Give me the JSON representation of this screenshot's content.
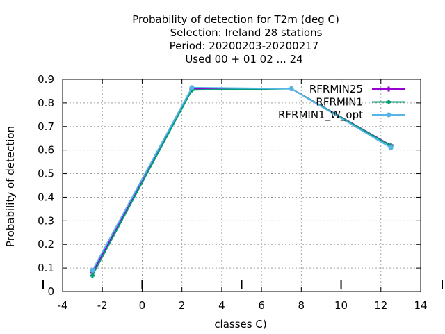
{
  "chart_data": {
    "type": "line",
    "title_lines": [
      "Probability of detection  for T2m (deg C)",
      "Selection: Ireland     28 stations",
      "Period: 20200203-20200217",
      "Used  00 + 01 02 ... 24"
    ],
    "xlabel": "classes C)",
    "ylabel": "Probability of detection",
    "xlim": [
      -4,
      14
    ],
    "ylim": [
      0,
      0.9
    ],
    "x_ticks": [
      "-4",
      "-2",
      "0",
      "2",
      "4",
      "6",
      "8",
      "10",
      "12",
      "14"
    ],
    "y_ticks": [
      "0",
      "0.1",
      "0.2",
      "0.3",
      "0.4",
      "0.5",
      "0.6",
      "0.7",
      "0.8",
      "0.9"
    ],
    "grid": true,
    "legend_position": "top-right",
    "series": [
      {
        "name": "RFRMIN25",
        "color": "#9400d3",
        "x": [
          -2.5,
          2.5,
          7.5,
          12.5
        ],
        "y": [
          0.08,
          0.86,
          0.86,
          0.62
        ]
      },
      {
        "name": "RFRMIN1",
        "color": "#009e73",
        "x": [
          -2.5,
          2.5,
          7.5,
          12.5
        ],
        "y": [
          0.068,
          0.855,
          0.86,
          0.618
        ]
      },
      {
        "name": "RFRMIN1_W_opt",
        "color": "#56b4e9",
        "x": [
          -2.5,
          2.5,
          7.5,
          12.5
        ],
        "y": [
          0.09,
          0.865,
          0.86,
          0.61
        ]
      }
    ]
  }
}
